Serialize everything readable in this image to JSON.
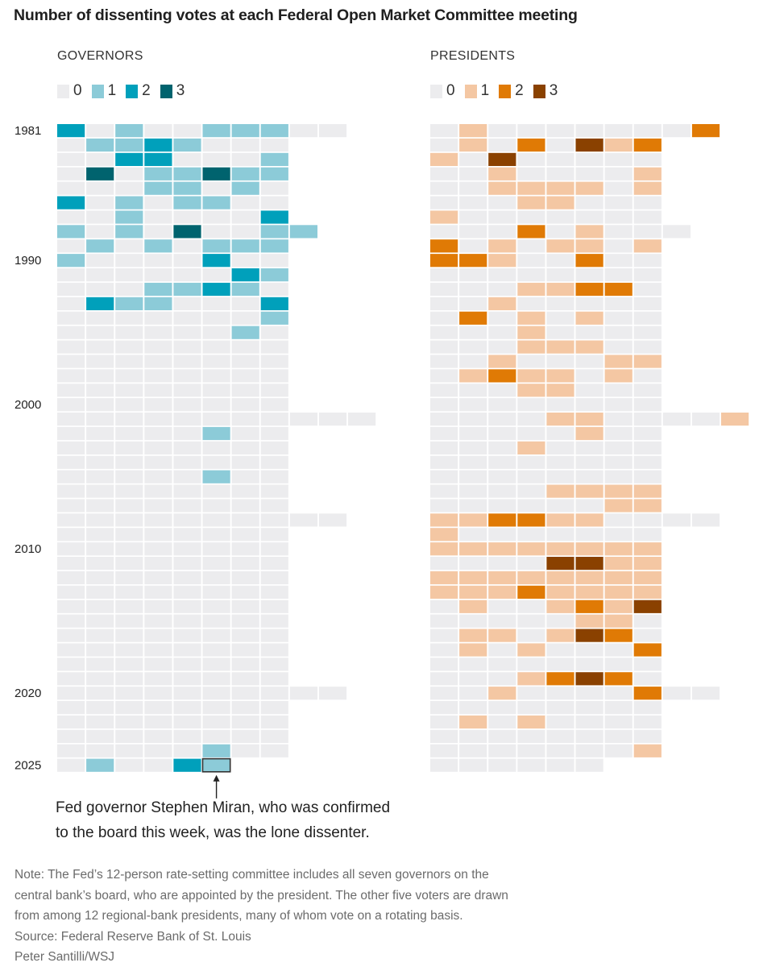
{
  "title": "Number of dissenting votes at each Federal Open Market Committee meeting",
  "panels": {
    "governors": {
      "label": "GOVERNORS"
    },
    "presidents": {
      "label": "PRESIDENTS"
    }
  },
  "legend": {
    "labels": [
      "0",
      "1",
      "2",
      "3"
    ],
    "governor_colors": [
      "#ececee",
      "#8ccbd8",
      "#00a0bb",
      "#00636e"
    ],
    "president_colors": [
      "#ececee",
      "#f4c7a3",
      "#e07a05",
      "#8a4100"
    ]
  },
  "highlight_color": "#333333",
  "annotation": {
    "line1": "Fed governor Stephen Miran, who was confirmed",
    "line2": "to the board this week, was the lone dissenter."
  },
  "note": {
    "line1": "Note: The Fed’s 12-person rate-setting committee includes all seven governors on the",
    "line2": "central bank’s board, who are appointed by the president. The other five voters are drawn",
    "line3": "from among 12 regional-bank presidents, many of whom vote on a rotating basis.",
    "source": "Source: Federal Reserve Bank of St. Louis",
    "credit": "Peter Santilli/WSJ"
  },
  "chart_data": {
    "type": "heatmap",
    "title": "Number of dissenting votes at each Federal Open Market Committee meeting",
    "row_unit": "year",
    "column_unit": "meeting",
    "years": [
      1981,
      1982,
      1983,
      1984,
      1985,
      1986,
      1987,
      1988,
      1989,
      1990,
      1991,
      1992,
      1993,
      1994,
      1995,
      1996,
      1997,
      1998,
      1999,
      2000,
      2001,
      2002,
      2003,
      2004,
      2005,
      2006,
      2007,
      2008,
      2009,
      2010,
      2011,
      2012,
      2013,
      2014,
      2015,
      2016,
      2017,
      2018,
      2019,
      2020,
      2021,
      2022,
      2023,
      2024,
      2025
    ],
    "year_tick_labels": [
      "1981",
      "1990",
      "2000",
      "2010",
      "2020",
      "2025"
    ],
    "value_range": [
      0,
      3
    ],
    "highlight": {
      "panel": "governors",
      "year": 2025,
      "meeting": 6
    },
    "governors": [
      [
        2,
        0,
        1,
        0,
        0,
        1,
        1,
        1,
        0,
        0
      ],
      [
        0,
        1,
        1,
        2,
        1,
        0,
        0,
        0
      ],
      [
        0,
        0,
        2,
        2,
        0,
        0,
        0,
        1
      ],
      [
        0,
        3,
        0,
        1,
        1,
        3,
        1,
        1
      ],
      [
        0,
        0,
        0,
        1,
        1,
        0,
        1,
        0
      ],
      [
        2,
        0,
        1,
        0,
        1,
        1,
        0,
        0
      ],
      [
        0,
        0,
        1,
        0,
        0,
        0,
        0,
        2
      ],
      [
        1,
        0,
        1,
        0,
        3,
        0,
        0,
        1,
        1
      ],
      [
        0,
        1,
        0,
        1,
        0,
        1,
        1,
        1
      ],
      [
        1,
        0,
        0,
        0,
        0,
        2,
        0,
        0
      ],
      [
        0,
        0,
        0,
        0,
        0,
        0,
        2,
        1
      ],
      [
        0,
        0,
        0,
        1,
        1,
        2,
        1,
        0
      ],
      [
        0,
        2,
        1,
        1,
        0,
        0,
        0,
        2
      ],
      [
        0,
        0,
        0,
        0,
        0,
        0,
        0,
        1
      ],
      [
        0,
        0,
        0,
        0,
        0,
        0,
        1,
        0
      ],
      [
        0,
        0,
        0,
        0,
        0,
        0,
        0,
        0
      ],
      [
        0,
        0,
        0,
        0,
        0,
        0,
        0,
        0
      ],
      [
        0,
        0,
        0,
        0,
        0,
        0,
        0,
        0
      ],
      [
        0,
        0,
        0,
        0,
        0,
        0,
        0,
        0
      ],
      [
        0,
        0,
        0,
        0,
        0,
        0,
        0,
        0
      ],
      [
        0,
        0,
        0,
        0,
        0,
        0,
        0,
        0,
        0,
        0,
        0
      ],
      [
        0,
        0,
        0,
        0,
        0,
        1,
        0,
        0
      ],
      [
        0,
        0,
        0,
        0,
        0,
        0,
        0,
        0
      ],
      [
        0,
        0,
        0,
        0,
        0,
        0,
        0,
        0
      ],
      [
        0,
        0,
        0,
        0,
        0,
        1,
        0,
        0
      ],
      [
        0,
        0,
        0,
        0,
        0,
        0,
        0,
        0
      ],
      [
        0,
        0,
        0,
        0,
        0,
        0,
        0,
        0
      ],
      [
        0,
        0,
        0,
        0,
        0,
        0,
        0,
        0,
        0,
        0
      ],
      [
        0,
        0,
        0,
        0,
        0,
        0,
        0,
        0
      ],
      [
        0,
        0,
        0,
        0,
        0,
        0,
        0,
        0
      ],
      [
        0,
        0,
        0,
        0,
        0,
        0,
        0,
        0
      ],
      [
        0,
        0,
        0,
        0,
        0,
        0,
        0,
        0
      ],
      [
        0,
        0,
        0,
        0,
        0,
        0,
        0,
        0
      ],
      [
        0,
        0,
        0,
        0,
        0,
        0,
        0,
        0
      ],
      [
        0,
        0,
        0,
        0,
        0,
        0,
        0,
        0
      ],
      [
        0,
        0,
        0,
        0,
        0,
        0,
        0,
        0
      ],
      [
        0,
        0,
        0,
        0,
        0,
        0,
        0,
        0
      ],
      [
        0,
        0,
        0,
        0,
        0,
        0,
        0,
        0
      ],
      [
        0,
        0,
        0,
        0,
        0,
        0,
        0,
        0
      ],
      [
        0,
        0,
        0,
        0,
        0,
        0,
        0,
        0,
        0,
        0
      ],
      [
        0,
        0,
        0,
        0,
        0,
        0,
        0,
        0
      ],
      [
        0,
        0,
        0,
        0,
        0,
        0,
        0,
        0
      ],
      [
        0,
        0,
        0,
        0,
        0,
        0,
        0,
        0
      ],
      [
        0,
        0,
        0,
        0,
        0,
        1,
        0,
        0
      ],
      [
        0,
        1,
        0,
        0,
        2,
        1
      ]
    ],
    "presidents": [
      [
        0,
        1,
        0,
        0,
        0,
        0,
        0,
        0,
        0,
        2
      ],
      [
        0,
        1,
        0,
        2,
        0,
        3,
        1,
        2
      ],
      [
        1,
        0,
        3,
        0,
        0,
        0,
        0,
        0
      ],
      [
        0,
        0,
        1,
        0,
        0,
        0,
        0,
        1
      ],
      [
        0,
        0,
        1,
        1,
        1,
        1,
        0,
        1
      ],
      [
        0,
        0,
        0,
        1,
        1,
        0,
        0,
        0
      ],
      [
        1,
        0,
        0,
        0,
        0,
        0,
        0,
        0
      ],
      [
        0,
        0,
        0,
        2,
        0,
        1,
        0,
        0,
        0
      ],
      [
        2,
        0,
        1,
        0,
        1,
        1,
        0,
        1
      ],
      [
        2,
        2,
        1,
        0,
        0,
        2,
        0,
        0
      ],
      [
        0,
        0,
        0,
        0,
        0,
        0,
        0,
        0
      ],
      [
        0,
        0,
        0,
        1,
        1,
        2,
        2,
        0
      ],
      [
        0,
        0,
        1,
        0,
        0,
        0,
        0,
        0
      ],
      [
        0,
        2,
        0,
        1,
        0,
        1,
        0,
        0
      ],
      [
        0,
        0,
        0,
        1,
        0,
        0,
        0,
        0
      ],
      [
        0,
        0,
        0,
        1,
        1,
        1,
        0,
        0
      ],
      [
        0,
        0,
        1,
        0,
        0,
        0,
        1,
        1
      ],
      [
        0,
        1,
        2,
        1,
        1,
        0,
        1,
        0
      ],
      [
        0,
        0,
        0,
        1,
        1,
        0,
        0,
        0
      ],
      [
        0,
        0,
        0,
        0,
        0,
        0,
        0,
        0
      ],
      [
        0,
        0,
        0,
        0,
        1,
        1,
        0,
        0,
        0,
        0,
        1
      ],
      [
        0,
        0,
        0,
        0,
        0,
        1,
        0,
        0
      ],
      [
        0,
        0,
        0,
        1,
        0,
        0,
        0,
        0
      ],
      [
        0,
        0,
        0,
        0,
        0,
        0,
        0,
        0
      ],
      [
        0,
        0,
        0,
        0,
        0,
        0,
        0,
        0
      ],
      [
        0,
        0,
        0,
        0,
        1,
        1,
        1,
        1
      ],
      [
        0,
        0,
        0,
        0,
        0,
        0,
        1,
        1
      ],
      [
        1,
        1,
        2,
        2,
        1,
        1,
        0,
        0,
        0,
        0
      ],
      [
        1,
        0,
        0,
        0,
        0,
        0,
        0,
        0
      ],
      [
        1,
        1,
        1,
        1,
        1,
        1,
        1,
        1
      ],
      [
        0,
        0,
        0,
        0,
        3,
        3,
        1,
        1
      ],
      [
        1,
        1,
        1,
        1,
        1,
        1,
        1,
        1
      ],
      [
        1,
        1,
        1,
        2,
        1,
        1,
        1,
        1
      ],
      [
        0,
        1,
        0,
        0,
        1,
        2,
        1,
        3
      ],
      [
        0,
        0,
        0,
        0,
        0,
        1,
        1,
        0
      ],
      [
        0,
        1,
        1,
        0,
        1,
        3,
        2,
        0
      ],
      [
        0,
        1,
        0,
        1,
        0,
        0,
        0,
        2
      ],
      [
        0,
        0,
        0,
        0,
        0,
        0,
        0,
        0
      ],
      [
        0,
        0,
        0,
        1,
        2,
        3,
        2,
        0
      ],
      [
        0,
        0,
        1,
        0,
        0,
        0,
        0,
        2,
        0,
        0
      ],
      [
        0,
        0,
        0,
        0,
        0,
        0,
        0,
        0
      ],
      [
        0,
        1,
        0,
        1,
        0,
        0,
        0,
        0
      ],
      [
        0,
        0,
        0,
        0,
        0,
        0,
        0,
        0
      ],
      [
        0,
        0,
        0,
        0,
        0,
        0,
        0,
        1
      ],
      [
        0,
        0,
        0,
        0,
        0,
        0
      ]
    ]
  }
}
